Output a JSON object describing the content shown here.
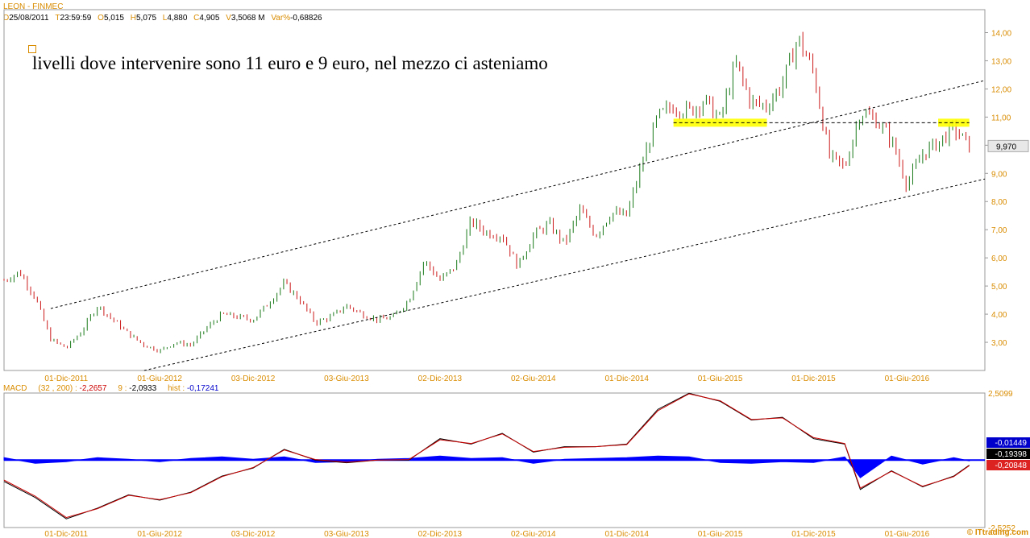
{
  "header": {
    "title": "LEON - FINMEC",
    "fields": [
      {
        "key": "D",
        "value": "25/08/2011"
      },
      {
        "key": "T",
        "value": "23:59:59"
      },
      {
        "key": "O",
        "value": "5,015"
      },
      {
        "key": "H",
        "value": "5,075"
      },
      {
        "key": "L",
        "value": "4,880"
      },
      {
        "key": "C",
        "value": "4,905"
      },
      {
        "key": "V",
        "value": "3,5068 M"
      },
      {
        "key": "Var%",
        "value": "-0,68826"
      }
    ]
  },
  "annotation": "livelli dove intervenire sono 11 euro e 9 euro, nel mezzo ci asteniamo",
  "colors": {
    "up": "#1a7a1a",
    "down": "#cc1a1a",
    "axis": "#d98c00",
    "highlight": "#ffff00",
    "macd_hist": "#0000ff"
  },
  "chart_data": [
    {
      "type": "line",
      "price_type": "candlestick",
      "x_tick_labels": [
        "01-Dic-2011",
        "01-Giu-2012",
        "03-Dic-2012",
        "03-Giu-2013",
        "02-Dic-2013",
        "02-Giu-2014",
        "01-Dic-2014",
        "01-Giu-2015",
        "01-Dic-2015",
        "01-Giu-2016"
      ],
      "y_tick_labels": [
        "3,00",
        "4,00",
        "5,00",
        "6,00",
        "7,00",
        "8,00",
        "9,00",
        "10,00",
        "11,00",
        "12,00",
        "13,00",
        "14,00"
      ],
      "ylim": [
        2,
        14.3
      ],
      "last_price_label": "9,970",
      "last_price": 9.97,
      "series": [
        {
          "values": [
            [
              "2011-08",
              5.2
            ],
            [
              "2011-09",
              5.5
            ],
            [
              "2011-10",
              4.6
            ],
            [
              "2011-11",
              3.1
            ],
            [
              "2011-12",
              2.8
            ],
            [
              "2012-01",
              3.4
            ],
            [
              "2012-02",
              4.3
            ],
            [
              "2012-03",
              3.8
            ],
            [
              "2012-04",
              3.3
            ],
            [
              "2012-05",
              2.9
            ],
            [
              "2012-06",
              2.7
            ],
            [
              "2012-07",
              3.0
            ],
            [
              "2012-08",
              2.9
            ],
            [
              "2012-09",
              3.5
            ],
            [
              "2012-10",
              4.0
            ],
            [
              "2012-11",
              3.9
            ],
            [
              "2012-12",
              3.8
            ],
            [
              "2013-01",
              4.4
            ],
            [
              "2013-02",
              5.1
            ],
            [
              "2013-03",
              4.5
            ],
            [
              "2013-04",
              3.7
            ],
            [
              "2013-05",
              3.9
            ],
            [
              "2013-06",
              4.3
            ],
            [
              "2013-07",
              4.0
            ],
            [
              "2013-08",
              3.8
            ],
            [
              "2013-09",
              3.9
            ],
            [
              "2013-10",
              4.5
            ],
            [
              "2013-11",
              5.9
            ],
            [
              "2013-12",
              5.2
            ],
            [
              "2014-01",
              5.7
            ],
            [
              "2014-02",
              7.3
            ],
            [
              "2014-03",
              6.9
            ],
            [
              "2014-04",
              6.8
            ],
            [
              "2014-05",
              5.7
            ],
            [
              "2014-06",
              6.8
            ],
            [
              "2014-07",
              7.2
            ],
            [
              "2014-08",
              6.5
            ],
            [
              "2014-09",
              7.7
            ],
            [
              "2014-10",
              6.8
            ],
            [
              "2014-11",
              7.6
            ],
            [
              "2014-12",
              7.5
            ],
            [
              "2015-01",
              9.4
            ],
            [
              "2015-02",
              11.0
            ],
            [
              "2015-03",
              11.4
            ],
            [
              "2015-04",
              11.2
            ],
            [
              "2015-05",
              11.6
            ],
            [
              "2015-06",
              10.9
            ],
            [
              "2015-07",
              12.9
            ],
            [
              "2015-08",
              11.5
            ],
            [
              "2015-09",
              11.4
            ],
            [
              "2015-10",
              12.2
            ],
            [
              "2015-11",
              13.8
            ],
            [
              "2015-12",
              12.6
            ],
            [
              "2016-01",
              9.6
            ],
            [
              "2016-02",
              9.2
            ],
            [
              "2016-03",
              11.2
            ],
            [
              "2016-04",
              10.9
            ],
            [
              "2016-05",
              10.2
            ],
            [
              "2016-06",
              8.6
            ],
            [
              "2016-07",
              9.7
            ],
            [
              "2016-08",
              10.1
            ],
            [
              "2016-09",
              10.6
            ],
            [
              "2016-10",
              9.97
            ]
          ]
        }
      ],
      "annotations": [
        {
          "type": "channel_upper",
          "from": [
            "2011-11",
            4.2
          ],
          "to": [
            "2016-11",
            12.3
          ]
        },
        {
          "type": "channel_lower",
          "from": [
            "2012-05",
            2.0
          ],
          "to": [
            "2016-11",
            8.8
          ]
        },
        {
          "type": "horizontal_level",
          "y": 10.8,
          "from": "2015-03",
          "to": "2016-10"
        },
        {
          "type": "highlight_box",
          "y": 10.8,
          "from": "2015-03",
          "to": "2015-09"
        },
        {
          "type": "highlight_box",
          "y": 10.8,
          "from": "2016-08",
          "to": "2016-10"
        }
      ]
    },
    {
      "type": "line",
      "title": "MACD",
      "params": "(32 , 200) :",
      "macd_value": "-2,2657",
      "signal_label": "9 :",
      "signal_value": "-2,0933",
      "hist_label": "hist :",
      "hist_value": "-0,17241",
      "y_tick_labels": [
        "2,5099",
        "-2,5252"
      ],
      "ylim": [
        -2.5252,
        2.5099
      ],
      "value_labels": [
        "-0,01449",
        "-0,19398",
        "-0,20848"
      ],
      "x_tick_labels": [
        "01-Dic-2011",
        "01-Giu-2012",
        "03-Dic-2012",
        "03-Giu-2013",
        "02-Dic-2013",
        "02-Giu-2014",
        "01-Dic-2014",
        "01-Giu-2015",
        "01-Dic-2015",
        "01-Giu-2016"
      ],
      "series": [
        {
          "values": [
            [
              "2011-08",
              -0.8
            ],
            [
              "2011-10",
              -1.4
            ],
            [
              "2011-12",
              -2.2
            ],
            [
              "2012-02",
              -1.8
            ],
            [
              "2012-04",
              -1.3
            ],
            [
              "2012-06",
              -1.5
            ],
            [
              "2012-08",
              -1.2
            ],
            [
              "2012-10",
              -0.6
            ],
            [
              "2012-12",
              -0.3
            ],
            [
              "2013-02",
              0.4
            ],
            [
              "2013-04",
              0.0
            ],
            [
              "2013-06",
              -0.1
            ],
            [
              "2013-08",
              0.0
            ],
            [
              "2013-10",
              0.0
            ],
            [
              "2013-12",
              0.8
            ],
            [
              "2014-02",
              0.6
            ],
            [
              "2014-04",
              1.0
            ],
            [
              "2014-06",
              0.3
            ],
            [
              "2014-08",
              0.5
            ],
            [
              "2014-10",
              0.5
            ],
            [
              "2014-12",
              0.6
            ],
            [
              "2015-02",
              1.9
            ],
            [
              "2015-04",
              2.5
            ],
            [
              "2015-06",
              2.2
            ],
            [
              "2015-08",
              1.5
            ],
            [
              "2015-10",
              1.6
            ],
            [
              "2015-12",
              0.8
            ],
            [
              "2016-02",
              0.6
            ],
            [
              "2016-03",
              -1.1
            ],
            [
              "2016-05",
              -0.4
            ],
            [
              "2016-07",
              -1.0
            ],
            [
              "2016-09",
              -0.6
            ],
            [
              "2016-10",
              -0.19
            ]
          ]
        },
        {
          "values": [
            [
              "2011-08",
              -0.75
            ],
            [
              "2011-10",
              -1.35
            ],
            [
              "2011-12",
              -2.15
            ],
            [
              "2012-02",
              -1.82
            ],
            [
              "2012-04",
              -1.32
            ],
            [
              "2012-06",
              -1.48
            ],
            [
              "2012-08",
              -1.22
            ],
            [
              "2012-10",
              -0.62
            ],
            [
              "2012-12",
              -0.28
            ],
            [
              "2013-02",
              0.38
            ],
            [
              "2013-04",
              0.02
            ],
            [
              "2013-06",
              -0.08
            ],
            [
              "2013-08",
              0.0
            ],
            [
              "2013-10",
              0.02
            ],
            [
              "2013-12",
              0.76
            ],
            [
              "2014-02",
              0.62
            ],
            [
              "2014-04",
              0.98
            ],
            [
              "2014-06",
              0.32
            ],
            [
              "2014-08",
              0.48
            ],
            [
              "2014-10",
              0.5
            ],
            [
              "2014-12",
              0.58
            ],
            [
              "2015-02",
              1.85
            ],
            [
              "2015-04",
              2.48
            ],
            [
              "2015-06",
              2.22
            ],
            [
              "2015-08",
              1.52
            ],
            [
              "2015-10",
              1.58
            ],
            [
              "2015-12",
              0.84
            ],
            [
              "2016-02",
              0.62
            ],
            [
              "2016-03",
              -1.05
            ],
            [
              "2016-05",
              -0.42
            ],
            [
              "2016-07",
              -0.98
            ],
            [
              "2016-09",
              -0.62
            ],
            [
              "2016-10",
              -0.21
            ]
          ]
        },
        {
          "values": [
            [
              "2011-08",
              0.03
            ],
            [
              "2011-10",
              -0.04
            ],
            [
              "2011-12",
              -0.02
            ],
            [
              "2012-02",
              0.03
            ],
            [
              "2012-04",
              0.01
            ],
            [
              "2012-06",
              -0.02
            ],
            [
              "2012-08",
              0.02
            ],
            [
              "2012-10",
              0.04
            ],
            [
              "2012-12",
              0.01
            ],
            [
              "2013-02",
              0.04
            ],
            [
              "2013-04",
              -0.03
            ],
            [
              "2013-06",
              -0.02
            ],
            [
              "2013-08",
              0.01
            ],
            [
              "2013-10",
              0.02
            ],
            [
              "2013-12",
              0.05
            ],
            [
              "2014-02",
              0.02
            ],
            [
              "2014-04",
              0.03
            ],
            [
              "2014-06",
              -0.04
            ],
            [
              "2014-08",
              0.01
            ],
            [
              "2014-10",
              0.02
            ],
            [
              "2014-12",
              0.03
            ],
            [
              "2015-02",
              0.05
            ],
            [
              "2015-04",
              0.04
            ],
            [
              "2015-06",
              -0.03
            ],
            [
              "2015-08",
              -0.04
            ],
            [
              "2015-10",
              -0.02
            ],
            [
              "2015-12",
              -0.03
            ],
            [
              "2016-02",
              0.04
            ],
            [
              "2016-03",
              -0.22
            ],
            [
              "2016-05",
              0.05
            ],
            [
              "2016-07",
              -0.05
            ],
            [
              "2016-09",
              0.03
            ],
            [
              "2016-10",
              -0.01
            ]
          ]
        }
      ]
    }
  ],
  "watermark": "© ITtrading.com"
}
